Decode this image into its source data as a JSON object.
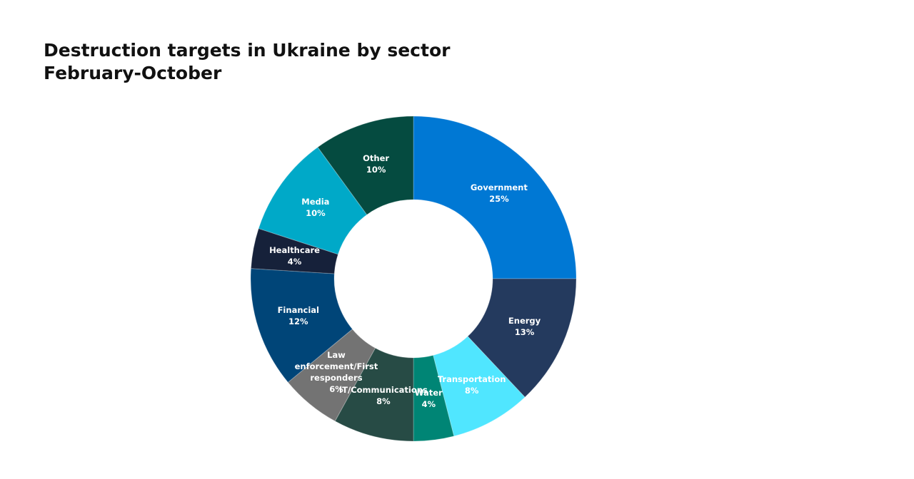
{
  "chart_data": {
    "type": "donut",
    "title": "Destruction targets in Ukraine by sector",
    "subtitle": "February-October",
    "categories": [
      "Government",
      "Energy",
      "Transportation",
      "Water",
      "IT/Communications",
      "Law enforcement/First responders",
      "Financial",
      "Healthcare",
      "Media",
      "Other"
    ],
    "values": [
      25,
      13,
      8,
      4,
      8,
      6,
      12,
      4,
      10,
      10
    ],
    "value_labels": [
      "25%",
      "13%",
      "8%",
      "4%",
      "8%",
      "6%",
      "12%",
      "4%",
      "10%",
      "10%"
    ],
    "colors": [
      "#0078d4",
      "#243a5e",
      "#50e6ff",
      "#008575",
      "#274b45",
      "#737373",
      "#004578",
      "#16213a",
      "#00a9c8",
      "#054b40"
    ]
  }
}
